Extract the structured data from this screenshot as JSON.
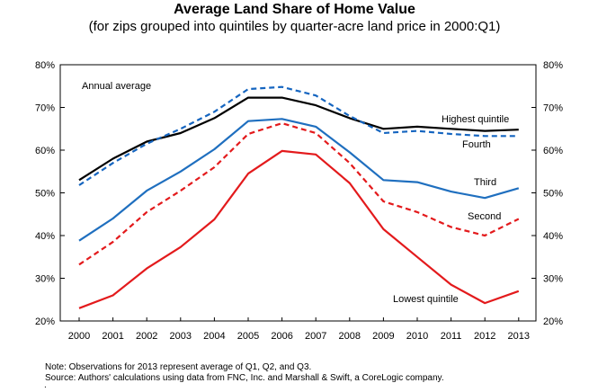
{
  "chart_data": {
    "type": "line",
    "title": "Average Land Share of Home Value",
    "subtitle": "(for zips grouped into quintiles by quarter-acre land price in 2000:Q1)",
    "x": [
      "2000",
      "2001",
      "2002",
      "2003",
      "2004",
      "2005",
      "2006",
      "2007",
      "2008",
      "2009",
      "2010",
      "2011",
      "2012",
      "2013"
    ],
    "ylim": [
      20,
      80
    ],
    "yticks": [
      "20%",
      "30%",
      "40%",
      "50%",
      "60%",
      "70%",
      "80%"
    ],
    "y_axis_both_sides": true,
    "grid": false,
    "series": [
      {
        "name": "Annual average",
        "color": "#000000",
        "dash": "solid",
        "values": [
          53.0,
          58.0,
          62.0,
          64.0,
          67.5,
          72.3,
          72.3,
          70.5,
          67.5,
          65.0,
          65.5,
          65.0,
          64.5,
          64.8
        ]
      },
      {
        "name": "Highest quintile",
        "color": "#1565c0",
        "dash": "dashed",
        "values": [
          51.8,
          57.0,
          61.5,
          65.0,
          69.0,
          74.3,
          74.8,
          72.8,
          68.0,
          64.0,
          64.5,
          63.8,
          63.3,
          63.3
        ]
      },
      {
        "name": "Fourth",
        "color": "#1565c0",
        "dash": "dashed",
        "values": [
          51.8,
          57.0,
          61.5,
          65.0,
          69.0,
          74.3,
          74.8,
          72.8,
          68.0,
          64.0,
          64.5,
          63.8,
          63.3,
          63.3
        ]
      },
      {
        "name": "Third",
        "color": "#1f6fbf",
        "dash": "solid",
        "values": [
          38.8,
          44.0,
          50.5,
          55.0,
          60.2,
          66.8,
          67.3,
          65.5,
          59.5,
          53.0,
          52.5,
          50.3,
          48.8,
          51.1
        ]
      },
      {
        "name": "Second",
        "color": "#e31a1c",
        "dash": "dashed",
        "values": [
          33.2,
          38.5,
          45.5,
          50.5,
          56.0,
          63.8,
          66.3,
          64.0,
          57.0,
          48.0,
          45.5,
          42.0,
          40.0,
          43.9
        ]
      },
      {
        "name": "Lowest quintile",
        "color": "#e31a1c",
        "dash": "solid",
        "values": [
          23.0,
          26.0,
          32.3,
          37.3,
          43.8,
          54.5,
          59.8,
          59.0,
          52.3,
          41.5,
          35.0,
          28.5,
          24.2,
          27.0
        ]
      }
    ],
    "annotations": [
      "Annual average",
      "Highest quintile",
      "Fourth",
      "Third",
      "Second",
      "Lowest quintile"
    ]
  },
  "notes": {
    "note1": "Note: Observations for 2013 represent average of Q1, Q2, and Q3.",
    "note2": "Source: Authors' calculations using data from FNC, Inc. and Marshall & Swift, a CoreLogic company.",
    "trailing": "."
  }
}
